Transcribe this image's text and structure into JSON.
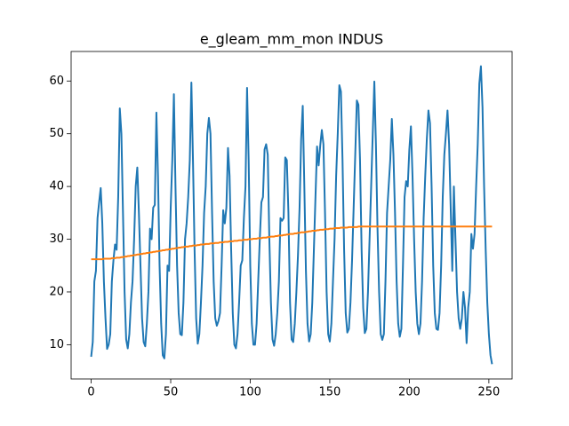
{
  "chart_data": {
    "type": "line",
    "title": "e_gleam_mm_mon INDUS",
    "x": [
      0,
      1,
      2,
      3,
      4,
      5,
      6,
      7,
      8,
      9,
      10,
      11,
      12,
      13,
      14,
      15,
      16,
      17,
      18,
      19,
      20,
      21,
      22,
      23,
      24,
      25,
      26,
      27,
      28,
      29,
      30,
      31,
      32,
      33,
      34,
      35,
      36,
      37,
      38,
      39,
      40,
      41,
      42,
      43,
      44,
      45,
      46,
      47,
      48,
      49,
      50,
      51,
      52,
      53,
      54,
      55,
      56,
      57,
      58,
      59,
      60,
      61,
      62,
      63,
      64,
      65,
      66,
      67,
      68,
      69,
      70,
      71,
      72,
      73,
      74,
      75,
      76,
      77,
      78,
      79,
      80,
      81,
      82,
      83,
      84,
      85,
      86,
      87,
      88,
      89,
      90,
      91,
      92,
      93,
      94,
      95,
      96,
      97,
      98,
      99,
      100,
      101,
      102,
      103,
      104,
      105,
      106,
      107,
      108,
      109,
      110,
      111,
      112,
      113,
      114,
      115,
      116,
      117,
      118,
      119,
      120,
      121,
      122,
      123,
      124,
      125,
      126,
      127,
      128,
      129,
      130,
      131,
      132,
      133,
      134,
      135,
      136,
      137,
      138,
      139,
      140,
      141,
      142,
      143,
      144,
      145,
      146,
      147,
      148,
      149,
      150,
      151,
      152,
      153,
      154,
      155,
      156,
      157,
      158,
      159,
      160,
      161,
      162,
      163,
      164,
      165,
      166,
      167,
      168,
      169,
      170,
      171,
      172,
      173,
      174,
      175,
      176,
      177,
      178,
      179,
      180,
      181,
      182,
      183,
      184,
      185,
      186,
      187,
      188,
      189,
      190,
      191,
      192,
      193,
      194,
      195,
      196,
      197,
      198,
      199,
      200,
      201,
      202,
      203,
      204,
      205,
      206,
      207,
      208,
      209,
      210,
      211,
      212,
      213,
      214,
      215,
      216,
      217,
      218,
      219,
      220,
      221,
      222,
      223,
      224,
      225,
      226,
      227,
      228,
      229,
      230,
      231,
      232,
      233,
      234,
      235,
      236,
      237,
      238,
      239,
      240,
      241,
      242,
      243,
      244,
      245,
      246,
      247,
      248,
      249,
      250,
      251,
      252
    ],
    "series": [
      {
        "color": "#1f77b4",
        "values": [
          7.7,
          10.5,
          22,
          24,
          34,
          37,
          39.7,
          33,
          22,
          15,
          9.2,
          10,
          12,
          22,
          26,
          29,
          28,
          38,
          54.8,
          50,
          35,
          20,
          11,
          9.3,
          12,
          18,
          22,
          30,
          40,
          43.6,
          35,
          25,
          15,
          10.5,
          9.7,
          14,
          20,
          32,
          30,
          36,
          36.5,
          54,
          42,
          25,
          14,
          8,
          7.4,
          12,
          25,
          24,
          36,
          45,
          57.5,
          40,
          25,
          16,
          12,
          11.8,
          18,
          30,
          33,
          38,
          45,
          59.7,
          45,
          28,
          15,
          10.2,
          12,
          18,
          25,
          35,
          40,
          50,
          53,
          50,
          35,
          22,
          15,
          13.6,
          14.5,
          16,
          25,
          35.5,
          33,
          36,
          47.3,
          42,
          28,
          16,
          10,
          9.3,
          12,
          18,
          25,
          26,
          34,
          40,
          58.7,
          45,
          25,
          14,
          10,
          10,
          14,
          22,
          30,
          37,
          38,
          47,
          48,
          46,
          30,
          18,
          11,
          9.8,
          12,
          16,
          22,
          34,
          33.5,
          34,
          45.5,
          45,
          35,
          18,
          11,
          10.5,
          14,
          20,
          27,
          36,
          49,
          55.3,
          40,
          24,
          14,
          10.6,
          12,
          18,
          28,
          38,
          47.6,
          44,
          47.8,
          50.7,
          48,
          35,
          20,
          12,
          10.6,
          14,
          22,
          30,
          42,
          50,
          59.2,
          58,
          45,
          28,
          16,
          12.3,
          13,
          18,
          26,
          36,
          46,
          56.3,
          55.5,
          45,
          28,
          17,
          12.2,
          13,
          20,
          30,
          40,
          50,
          59.9,
          48,
          32,
          20,
          12,
          10.9,
          12,
          22,
          35,
          40,
          45,
          52.8,
          46,
          35,
          22,
          14,
          11.5,
          13,
          25,
          38,
          41,
          40,
          47,
          51.4,
          42,
          30,
          20,
          14,
          12,
          14,
          22,
          34,
          42,
          49,
          54.4,
          52,
          40,
          25,
          16,
          13,
          12.8,
          16,
          25,
          38,
          46,
          50,
          54.4,
          48,
          36,
          24,
          40,
          30,
          20,
          15,
          13,
          15,
          20,
          17,
          10.3,
          17,
          20,
          31,
          28.2,
          31,
          40,
          48,
          59.5,
          62.8,
          55,
          40,
          28,
          18,
          12,
          8,
          6.3
        ]
      },
      {
        "color": "#ff7f0e",
        "values": [
          26.2,
          26.2,
          26.2,
          26.2,
          26.2,
          26.2,
          26.2,
          26.2,
          26.3,
          26.3,
          26.3,
          26.3,
          26.3,
          26.4,
          26.4,
          26.4,
          26.5,
          26.5,
          26.5,
          26.6,
          26.6,
          26.7,
          26.7,
          26.8,
          26.8,
          26.9,
          26.9,
          27.0,
          27.0,
          27.1,
          27.1,
          27.2,
          27.2,
          27.3,
          27.3,
          27.4,
          27.4,
          27.5,
          27.5,
          27.6,
          27.6,
          27.7,
          27.7,
          27.8,
          27.8,
          27.9,
          27.9,
          28.0,
          28.0,
          28.1,
          28.1,
          28.2,
          28.2,
          28.3,
          28.3,
          28.4,
          28.4,
          28.5,
          28.5,
          28.6,
          28.6,
          28.6,
          28.7,
          28.7,
          28.8,
          28.8,
          28.8,
          28.9,
          28.9,
          29.0,
          29.0,
          29.0,
          29.1,
          29.1,
          29.1,
          29.2,
          29.2,
          29.2,
          29.3,
          29.3,
          29.3,
          29.4,
          29.4,
          29.4,
          29.5,
          29.5,
          29.5,
          29.6,
          29.6,
          29.6,
          29.7,
          29.7,
          29.7,
          29.8,
          29.8,
          29.8,
          29.9,
          29.9,
          29.9,
          30.0,
          30.0,
          30.0,
          30.1,
          30.1,
          30.1,
          30.2,
          30.2,
          30.2,
          30.3,
          30.3,
          30.3,
          30.4,
          30.4,
          30.5,
          30.5,
          30.5,
          30.6,
          30.6,
          30.7,
          30.7,
          30.7,
          30.8,
          30.8,
          30.9,
          30.9,
          31.0,
          31.0,
          31.0,
          31.1,
          31.1,
          31.2,
          31.2,
          31.3,
          31.3,
          31.3,
          31.4,
          31.4,
          31.5,
          31.5,
          31.6,
          31.6,
          31.6,
          31.7,
          31.7,
          31.8,
          31.8,
          31.8,
          31.9,
          31.9,
          31.9,
          32.0,
          32.0,
          32.0,
          32.1,
          32.1,
          32.1,
          32.1,
          32.2,
          32.2,
          32.2,
          32.2,
          32.2,
          32.3,
          32.3,
          32.3,
          32.3,
          32.3,
          32.3,
          32.4,
          32.4,
          32.4,
          32.4,
          32.4,
          32.4,
          32.4,
          32.4,
          32.4,
          32.4,
          32.4,
          32.4,
          32.4,
          32.4,
          32.4,
          32.4,
          32.4,
          32.4,
          32.4,
          32.4,
          32.4,
          32.4,
          32.4,
          32.4,
          32.4,
          32.4,
          32.4,
          32.4,
          32.4,
          32.4,
          32.4,
          32.4,
          32.4,
          32.4,
          32.4,
          32.4,
          32.4,
          32.4,
          32.4,
          32.4,
          32.4,
          32.4,
          32.4,
          32.4,
          32.4,
          32.4,
          32.4,
          32.4,
          32.4,
          32.4,
          32.4,
          32.4,
          32.4,
          32.4,
          32.4,
          32.4,
          32.4,
          32.4,
          32.4,
          32.4,
          32.4,
          32.4,
          32.4,
          32.4,
          32.4,
          32.4,
          32.4,
          32.4,
          32.4,
          32.4,
          32.4,
          32.4,
          32.4,
          32.4,
          32.4,
          32.4,
          32.4,
          32.4,
          32.4,
          32.4,
          32.4,
          32.4,
          32.4,
          32.4,
          32.4
        ]
      }
    ],
    "xlim": [
      -12.6,
      264.6
    ],
    "xticks": [
      0,
      50,
      100,
      150,
      200,
      250
    ],
    "ylim": [
      3.5,
      65.6
    ],
    "yticks": [
      10,
      20,
      30,
      40,
      50,
      60
    ]
  }
}
